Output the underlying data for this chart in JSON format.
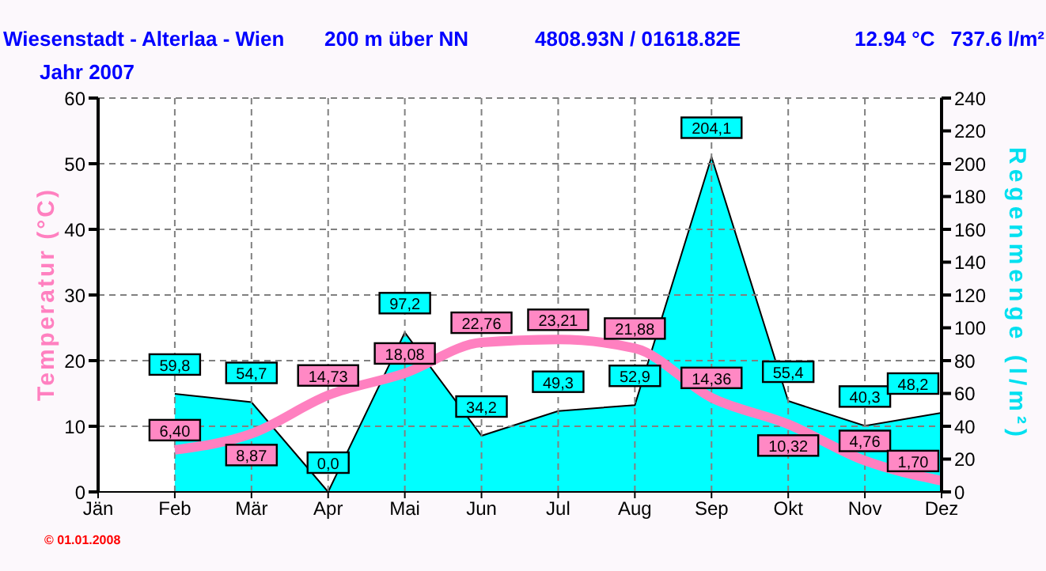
{
  "chart_data": {
    "type": "line",
    "title": "Wiesenstadt - Alterlaa - Wien",
    "subtitle": "Jahr 2007",
    "annotations": [
      "200 m über NN",
      "4808.93N / 01618.82E",
      "12.94 °C",
      "737.6 l/m²",
      "© 01.01.2008"
    ],
    "ylabel": "Temperatur (°C)",
    "y2label": "Regenmenge (l/m²)",
    "categories": [
      "Jän",
      "Feb",
      "Mär",
      "Apr",
      "Mai",
      "Jun",
      "Jul",
      "Aug",
      "Sep",
      "Okt",
      "Nov",
      "Dez"
    ],
    "series": [
      {
        "type": "area",
        "axis": "y2",
        "color": "#00ffff",
        "values": [
          null,
          59.8,
          54.7,
          0.0,
          97.2,
          34.2,
          49.3,
          52.9,
          204.1,
          55.4,
          40.3,
          48.2
        ],
        "value_labels": [
          null,
          "59,8",
          "54,7",
          "0,0",
          "97,2",
          "34,2",
          "49,3",
          "52,9",
          "204,1",
          "55,4",
          "40,3",
          "48,2"
        ]
      },
      {
        "color": "#ff80c0",
        "values": [
          null,
          6.4,
          8.87,
          14.73,
          18.08,
          22.76,
          23.21,
          21.88,
          14.36,
          10.32,
          4.76,
          1.7
        ],
        "value_labels": [
          null,
          "6,40",
          "8,87",
          "14,73",
          "18,08",
          "22,76",
          "23,21",
          "21,88",
          "14,36",
          "10,32",
          "4,76",
          "1,70"
        ]
      }
    ],
    "ylim": [
      0,
      60
    ],
    "yticks": [
      0,
      10,
      20,
      30,
      40,
      50,
      60
    ],
    "y2lim": [
      0,
      240
    ],
    "y2ticks": [
      0,
      20,
      40,
      60,
      80,
      100,
      120,
      140,
      160,
      180,
      200,
      220,
      240
    ],
    "grid": true,
    "marker": "none"
  }
}
